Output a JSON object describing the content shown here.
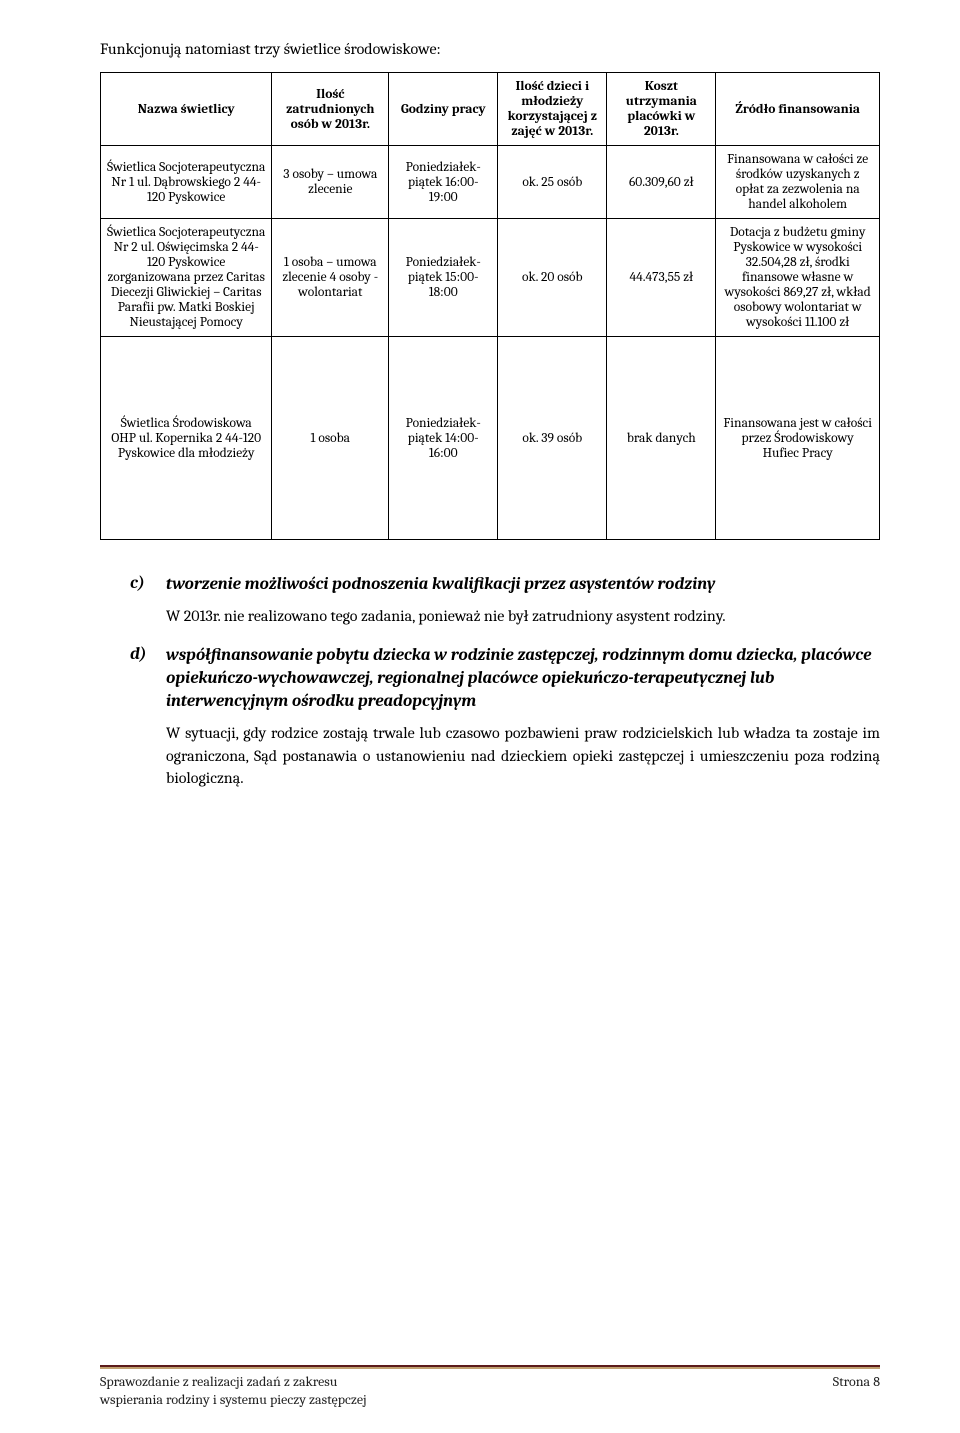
{
  "intro": "Funkcjonują natomiast trzy świetlice środowiskowe:",
  "table": {
    "headers": {
      "name": "Nazwa świetlicy",
      "staff": "Ilość zatrudnionych osób w 2013r.",
      "hours": "Godziny pracy",
      "kids": "Ilość dzieci i młodzieży korzystającej z zajęć w 2013r.",
      "cost": "Koszt utrzymania placówki w 2013r.",
      "source": "Źródło finansowania"
    },
    "rows": [
      {
        "name": "Świetlica Socjoterapeutyczna Nr 1 ul. Dąbrowskiego 2 44-120 Pyskowice",
        "staff": "3 osoby – umowa zlecenie",
        "hours": "Poniedziałek-piątek 16:00-19:00",
        "kids": "ok. 25 osób",
        "cost": "60.309,60 zł",
        "source": "Finansowana w całości ze środków uzyskanych z opłat za zezwolenia na handel alkoholem"
      },
      {
        "name": "Świetlica Socjoterapeutyczna Nr 2 ul. Oświęcimska 2 44-120 Pyskowice zorganizowana przez Caritas Diecezji Gliwickiej – Caritas Parafii pw. Matki Boskiej Nieustającej Pomocy",
        "staff": "1 osoba – umowa zlecenie 4 osoby - wolontariat",
        "hours": "Poniedziałek-piątek 15:00-18:00",
        "kids": "ok. 20 osób",
        "cost": "44.473,55 zł",
        "source": "Dotacja z budżetu gminy Pyskowice w wysokości 32.504,28 zł, środki finansowe własne w wysokości 869,27 zł, wkład osobowy wolontariat w wysokości 11.100 zł"
      },
      {
        "name": "Świetlica Środowiskowa OHP ul. Kopernika 2 44-120 Pyskowice dla młodzieży",
        "staff": "1 osoba",
        "hours": "Poniedziałek-piątek 14:00-16:00",
        "kids": "ok. 39 osób",
        "cost": "brak danych",
        "source": "Finansowana jest w całości przez Środowiskowy Hufiec Pracy"
      }
    ]
  },
  "list": {
    "c": {
      "marker": "c)",
      "title": "tworzenie możliwości podnoszenia kwalifikacji przez asystentów rodziny",
      "body": "W 2013r. nie realizowano tego zadania, ponieważ nie był zatrudniony asystent rodziny."
    },
    "d": {
      "marker": "d)",
      "title": "współfinansowanie pobytu dziecka w rodzinie zastępczej, rodzinnym domu dziecka, placówce opiekuńczo-wychowawczej, regionalnej placówce opiekuńczo-terapeutycznej lub interwencyjnym ośrodku preadopcyjnym",
      "body": "W sytuacji, gdy rodzice zostają trwale lub czasowo pozbawieni praw rodzicielskich lub władza ta zostaje im ograniczona, Sąd postanawia o ustanowieniu nad dzieckiem opieki zastępczej i umieszczeniu poza rodziną biologiczną."
    }
  },
  "footer": {
    "left_line1": "Sprawozdanie z realizacji zadań z zakresu",
    "left_line2": "wspierania rodziny i systemu pieczy zastępczej",
    "right": "Strona 8"
  },
  "colors": {
    "rule_top": "#5b1a1a",
    "rule_bottom": "#c0a070",
    "text": "#000000",
    "background": "#ffffff"
  }
}
